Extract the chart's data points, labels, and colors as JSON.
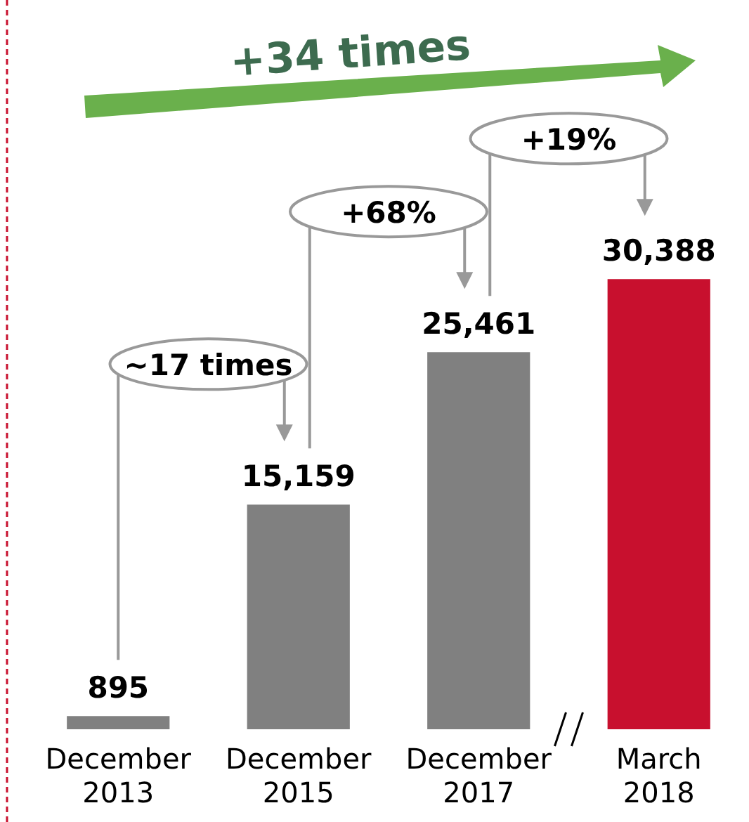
{
  "chart_data": {
    "type": "bar",
    "categories": [
      "December 2013",
      "December 2015",
      "December 2017",
      "March 2018"
    ],
    "values": [
      895,
      15159,
      25461,
      30388
    ],
    "value_labels": [
      "895",
      "15,159",
      "25,461",
      "30,388"
    ],
    "colors": [
      "#808080",
      "#808080",
      "#808080",
      "#c8102e"
    ],
    "grid": false,
    "legend": false,
    "tick_labels": "x",
    "annotations": [
      "+34 times",
      "~17 times",
      "+68%",
      "+19%"
    ]
  }
}
